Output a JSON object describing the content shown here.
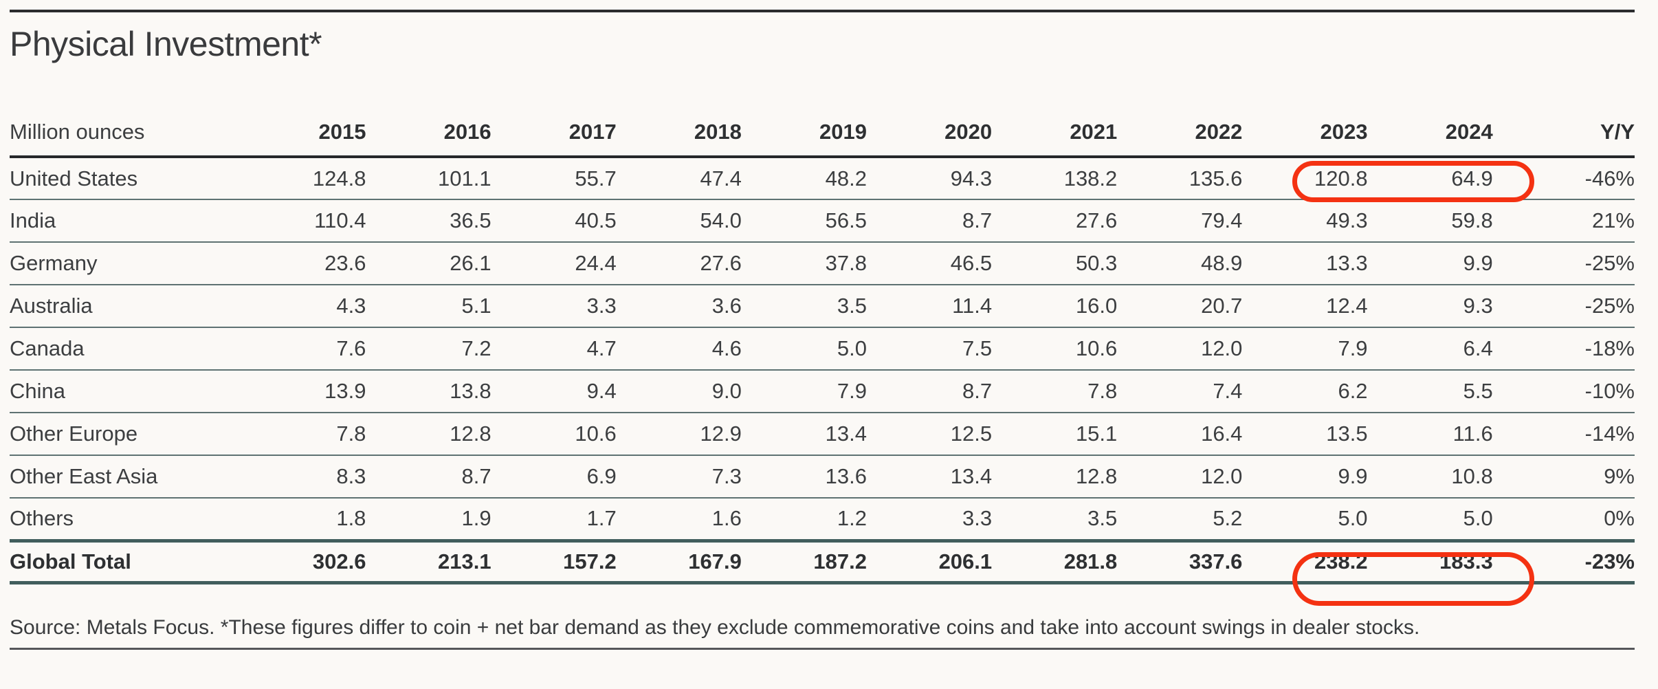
{
  "title": "Physical Investment*",
  "source": "Source: Metals Focus. *These figures differ to coin + net bar demand as they exclude commemorative coins and take into account swings in dealer stocks.",
  "colors": {
    "background": "#fbf9f6",
    "text": "#3c3e40",
    "heading_text": "#2e3032",
    "highlight_red": "#f43212",
    "row_separator": "#5e7272",
    "header_rule": "#26282b",
    "total_rule": "#415e5d"
  },
  "chart_data": {
    "type": "table",
    "title": "Physical Investment*",
    "unit_label": "Million ounces",
    "columns": [
      "2015",
      "2016",
      "2017",
      "2018",
      "2019",
      "2020",
      "2021",
      "2022",
      "2023",
      "2024",
      "Y/Y"
    ],
    "highlighted_columns": [
      "2023",
      "2024"
    ],
    "rows": [
      {
        "label": "United States",
        "values": [
          "124.8",
          "101.1",
          "55.7",
          "47.4",
          "48.2",
          "94.3",
          "138.2",
          "135.6",
          "120.8",
          "64.9"
        ],
        "yoy": "-46%",
        "highlighted": true
      },
      {
        "label": "India",
        "values": [
          "110.4",
          "36.5",
          "40.5",
          "54.0",
          "56.5",
          "8.7",
          "27.6",
          "79.4",
          "49.3",
          "59.8"
        ],
        "yoy": "21%",
        "highlighted": false
      },
      {
        "label": "Germany",
        "values": [
          "23.6",
          "26.1",
          "24.4",
          "27.6",
          "37.8",
          "46.5",
          "50.3",
          "48.9",
          "13.3",
          "9.9"
        ],
        "yoy": "-25%",
        "highlighted": false
      },
      {
        "label": "Australia",
        "values": [
          "4.3",
          "5.1",
          "3.3",
          "3.6",
          "3.5",
          "11.4",
          "16.0",
          "20.7",
          "12.4",
          "9.3"
        ],
        "yoy": "-25%",
        "highlighted": false
      },
      {
        "label": "Canada",
        "values": [
          "7.6",
          "7.2",
          "4.7",
          "4.6",
          "5.0",
          "7.5",
          "10.6",
          "12.0",
          "7.9",
          "6.4"
        ],
        "yoy": "-18%",
        "highlighted": false
      },
      {
        "label": "China",
        "values": [
          "13.9",
          "13.8",
          "9.4",
          "9.0",
          "7.9",
          "8.7",
          "7.8",
          "7.4",
          "6.2",
          "5.5"
        ],
        "yoy": "-10%",
        "highlighted": false
      },
      {
        "label": "Other Europe",
        "values": [
          "7.8",
          "12.8",
          "10.6",
          "12.9",
          "13.4",
          "12.5",
          "15.1",
          "16.4",
          "13.5",
          "11.6"
        ],
        "yoy": "-14%",
        "highlighted": false
      },
      {
        "label": "Other East Asia",
        "values": [
          "8.3",
          "8.7",
          "6.9",
          "7.3",
          "13.6",
          "13.4",
          "12.8",
          "12.0",
          "9.9",
          "10.8"
        ],
        "yoy": "9%",
        "highlighted": false
      },
      {
        "label": "Others",
        "values": [
          "1.8",
          "1.9",
          "1.7",
          "1.6",
          "1.2",
          "3.3",
          "3.5",
          "5.2",
          "5.0",
          "5.0"
        ],
        "yoy": "0%",
        "highlighted": false
      }
    ],
    "total_row": {
      "label": "Global Total",
      "values": [
        "302.6",
        "213.1",
        "157.2",
        "167.9",
        "187.2",
        "206.1",
        "281.8",
        "337.6",
        "238.2",
        "183.3"
      ],
      "yoy": "-23%",
      "highlighted": true
    }
  }
}
